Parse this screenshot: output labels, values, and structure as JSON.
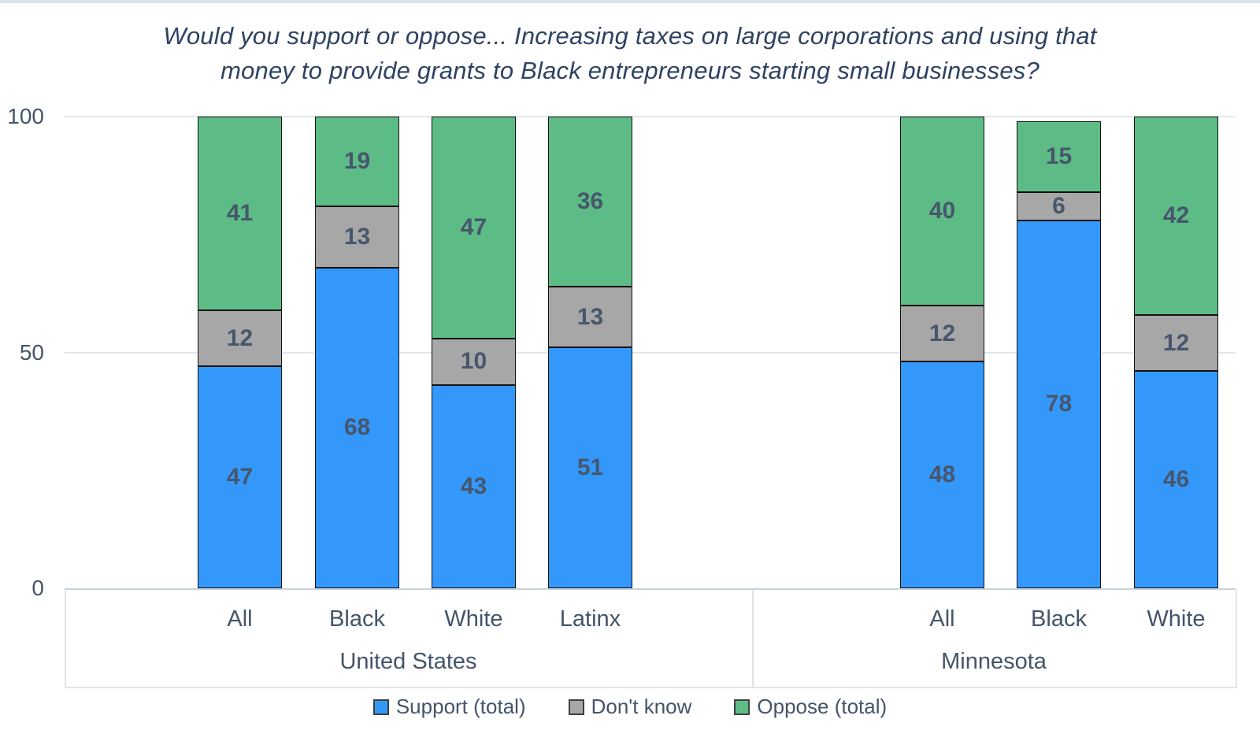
{
  "page": {
    "top_strip_color": "#dce3ef",
    "background_color": "#ffffff"
  },
  "chart_data": {
    "type": "bar",
    "stacked": true,
    "title_line1": "Would you support or oppose... Increasing taxes on large corporations and using that",
    "title_line2": "money to provide grants to Black entrepreneurs starting small businesses?",
    "y_axis": {
      "ticks": [
        0,
        50,
        100
      ],
      "range": [
        0,
        100
      ],
      "gridlines": true
    },
    "groups": [
      {
        "label": "United States",
        "categories": [
          "All",
          "Black",
          "White",
          "Latinx"
        ]
      },
      {
        "label": "Minnesota",
        "categories": [
          "All",
          "Black",
          "White"
        ]
      }
    ],
    "categories_flat": [
      "All",
      "Black",
      "White",
      "Latinx",
      "All",
      "Black",
      "White"
    ],
    "series": [
      {
        "name": "Support (total)",
        "color": "#3498fb",
        "values": [
          47,
          68,
          43,
          51,
          48,
          78,
          46
        ]
      },
      {
        "name": "Don't know",
        "color": "#a7a7a7",
        "values": [
          12,
          13,
          10,
          13,
          12,
          6,
          12
        ]
      },
      {
        "name": "Oppose (total)",
        "color": "#5dbc85",
        "values": [
          41,
          19,
          47,
          36,
          40,
          15,
          42
        ]
      }
    ],
    "legend_position": "bottom",
    "label_color": "#47566c",
    "bar_border_color": "#121212"
  }
}
